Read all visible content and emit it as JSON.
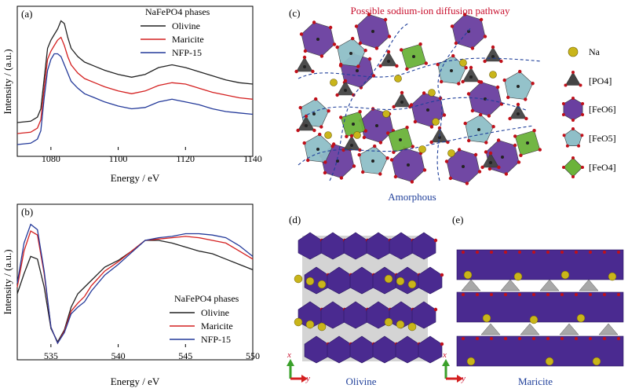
{
  "panels": {
    "a": {
      "letter": "(a)"
    },
    "b": {
      "letter": "(b)"
    },
    "c": {
      "letter": "(c)",
      "title": "Possible sodium-ion diffusion pathway",
      "amorphous_label": "Amorphous"
    },
    "d": {
      "letter": "(d)",
      "label": "Olivine",
      "axis_x": "x",
      "axis_y": "y"
    },
    "e": {
      "letter": "(e)",
      "label": "Maricite",
      "axis_x": "x",
      "axis_y": "y"
    }
  },
  "legend_c": [
    {
      "label": "Na",
      "icon": "na-sphere-icon"
    },
    {
      "label": "[PO4]",
      "icon": "po4-tetrahedron-icon"
    },
    {
      "label": "[FeO6]",
      "icon": "feo6-octahedron-icon"
    },
    {
      "label": "[FeO5]",
      "icon": "feo5-polyhedron-icon"
    },
    {
      "label": "[FeO4]",
      "icon": "feo4-tetrahedron-icon"
    }
  ],
  "colors": {
    "olivine": "#222222",
    "maricite": "#d42020",
    "nfp15": "#243a9a",
    "title_red": "#c8102e",
    "amorphous_blue": "#1f3f9a",
    "feo6": "#6a3fa0",
    "feo5": "#8fbfc8",
    "feo4": "#6bb33a",
    "na": "#c9b51a",
    "po4": "#555555"
  },
  "chart_data": [
    {
      "type": "line",
      "panel": "a",
      "legend_title": "NaFePO4 phases",
      "xlabel": "Energy / eV",
      "ylabel": "Intensity / (a.u.)",
      "xlim": [
        1070,
        1140
      ],
      "ylim": [
        0,
        1
      ],
      "xticks": [
        "1080",
        "1100",
        "1120",
        "1140"
      ],
      "series": [
        {
          "name": "Olivine",
          "x": [
            1070,
            1074,
            1076,
            1077,
            1078,
            1079,
            1080,
            1081,
            1082,
            1083,
            1084,
            1085,
            1086,
            1088,
            1090,
            1093,
            1096,
            1100,
            1104,
            1108,
            1112,
            1116,
            1120,
            1124,
            1128,
            1132,
            1136,
            1140
          ],
          "y": [
            0.2,
            0.21,
            0.24,
            0.3,
            0.52,
            0.74,
            0.8,
            0.84,
            0.88,
            0.94,
            0.92,
            0.82,
            0.74,
            0.68,
            0.64,
            0.61,
            0.58,
            0.55,
            0.53,
            0.55,
            0.6,
            0.62,
            0.6,
            0.57,
            0.54,
            0.51,
            0.49,
            0.48
          ]
        },
        {
          "name": "Maricite",
          "x": [
            1070,
            1074,
            1076,
            1077,
            1078,
            1079,
            1080,
            1081,
            1082,
            1083,
            1084,
            1085,
            1086,
            1088,
            1090,
            1093,
            1096,
            1100,
            1104,
            1108,
            1112,
            1116,
            1120,
            1124,
            1128,
            1132,
            1136,
            1140
          ],
          "y": [
            0.12,
            0.13,
            0.16,
            0.22,
            0.45,
            0.66,
            0.72,
            0.76,
            0.8,
            0.82,
            0.76,
            0.68,
            0.62,
            0.56,
            0.52,
            0.49,
            0.46,
            0.43,
            0.41,
            0.43,
            0.47,
            0.49,
            0.48,
            0.45,
            0.42,
            0.4,
            0.38,
            0.37
          ]
        },
        {
          "name": "NFP-15",
          "x": [
            1070,
            1074,
            1076,
            1077,
            1078,
            1079,
            1080,
            1081,
            1082,
            1083,
            1084,
            1085,
            1086,
            1088,
            1090,
            1093,
            1096,
            1100,
            1104,
            1108,
            1112,
            1116,
            1120,
            1124,
            1128,
            1132,
            1136,
            1140
          ],
          "y": [
            0.04,
            0.05,
            0.08,
            0.14,
            0.38,
            0.58,
            0.66,
            0.7,
            0.7,
            0.68,
            0.62,
            0.56,
            0.5,
            0.45,
            0.41,
            0.38,
            0.35,
            0.32,
            0.3,
            0.31,
            0.35,
            0.37,
            0.35,
            0.33,
            0.3,
            0.28,
            0.27,
            0.26
          ]
        }
      ]
    },
    {
      "type": "line",
      "panel": "b",
      "legend_title": "NaFePO4 phases",
      "xlabel": "Energy / eV",
      "ylabel": "Intensity / (a.u.)",
      "xlim": [
        532.5,
        550
      ],
      "ylim": [
        0,
        1
      ],
      "xticks": [
        "535",
        "540",
        "545",
        "550"
      ],
      "series": [
        {
          "name": "Olivine",
          "x": [
            532.5,
            533,
            533.5,
            534,
            534.5,
            535,
            535.5,
            536,
            536.5,
            537,
            537.5,
            538,
            539,
            540,
            541,
            542,
            543,
            544,
            545,
            546,
            547,
            548,
            549,
            550
          ],
          "y": [
            0.4,
            0.55,
            0.68,
            0.66,
            0.45,
            0.14,
            0.04,
            0.13,
            0.3,
            0.4,
            0.45,
            0.5,
            0.6,
            0.65,
            0.72,
            0.8,
            0.8,
            0.78,
            0.75,
            0.72,
            0.7,
            0.66,
            0.62,
            0.58
          ]
        },
        {
          "name": "Maricite",
          "x": [
            532.5,
            533,
            533.5,
            534,
            534.5,
            535,
            535.5,
            536,
            536.5,
            537,
            537.5,
            538,
            539,
            540,
            541,
            542,
            543,
            544,
            545,
            546,
            547,
            548,
            549,
            550
          ],
          "y": [
            0.45,
            0.72,
            0.87,
            0.84,
            0.55,
            0.15,
            0.03,
            0.12,
            0.27,
            0.33,
            0.38,
            0.46,
            0.57,
            0.64,
            0.72,
            0.8,
            0.81,
            0.82,
            0.83,
            0.82,
            0.8,
            0.78,
            0.72,
            0.66
          ]
        },
        {
          "name": "NFP-15",
          "x": [
            532.5,
            533,
            533.5,
            534,
            534.5,
            535,
            535.5,
            536,
            536.5,
            537,
            537.5,
            538,
            539,
            540,
            541,
            542,
            543,
            544,
            545,
            546,
            547,
            548,
            549,
            550
          ],
          "y": [
            0.48,
            0.78,
            0.92,
            0.88,
            0.57,
            0.15,
            0.03,
            0.11,
            0.25,
            0.3,
            0.34,
            0.42,
            0.54,
            0.62,
            0.71,
            0.8,
            0.82,
            0.83,
            0.85,
            0.85,
            0.84,
            0.82,
            0.76,
            0.68
          ]
        }
      ]
    }
  ]
}
